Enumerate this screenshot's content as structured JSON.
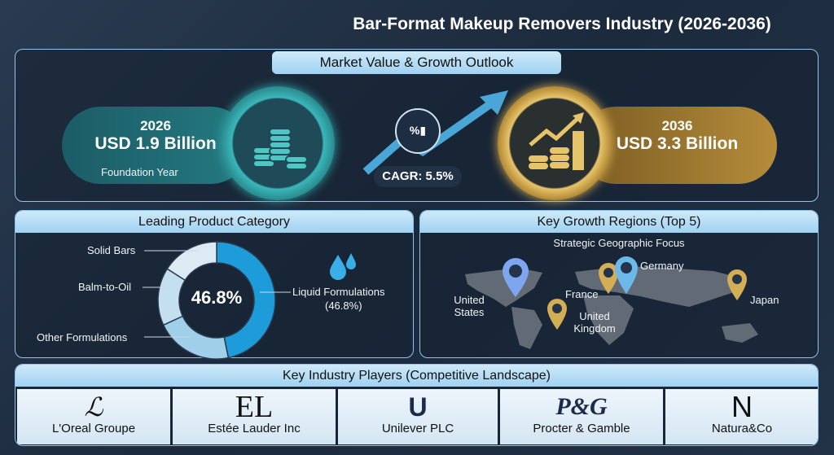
{
  "title": "Bar-Format Makeup Removers Industry (2026-2036)",
  "market": {
    "header": "Market Value & Growth Outlook",
    "start": {
      "year": "2026",
      "value": "USD 1.9 Billion",
      "caption": "Foundation Year"
    },
    "cagr": "CAGR: 5.5%",
    "end": {
      "year": "2036",
      "value": "USD 3.3 Billion"
    }
  },
  "product": {
    "header": "Leading Product Category",
    "center_value": "46.8%",
    "segments": [
      "Solid Bars",
      "Balm-to-Oil",
      "Other Formulations"
    ],
    "leader": {
      "label": "Liquid Formulations",
      "value": "(46.8%)",
      "share": 46.8
    }
  },
  "regions": {
    "header": "Key Growth Regions (Top 5)",
    "subtitle": "Strategic Geographic Focus",
    "items": [
      "United States",
      "Germany",
      "France",
      "United Kingdom",
      "Japan"
    ]
  },
  "players": {
    "header": "Key Industry Players (Competitive Landscape)",
    "items": [
      {
        "logo": "ℒ",
        "name": "L'Oreal Groupe"
      },
      {
        "logo": "EL",
        "name": "Estée Lauder Inc"
      },
      {
        "logo": "U",
        "name": "Unilever PLC"
      },
      {
        "logo": "P&G",
        "name": "Procter & Gamble"
      },
      {
        "logo": "N",
        "name": "Natura&Co"
      }
    ]
  },
  "colors": {
    "accent": "#3aaee6",
    "teal": "#2fa3a6",
    "gold": "#d4ae55",
    "panel_border": "#8cc6ea"
  }
}
